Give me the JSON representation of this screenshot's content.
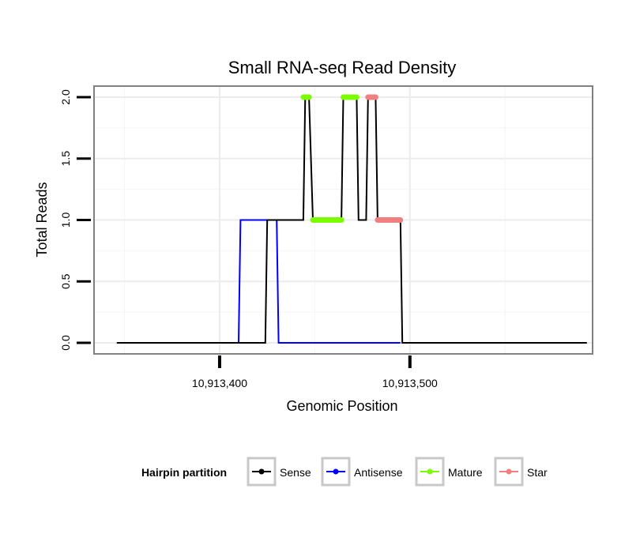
{
  "chart_data": {
    "type": "line",
    "title": "Small RNA-seq Read Density",
    "xlabel": "Genomic Position",
    "ylabel": "Total Reads",
    "xlim": [
      10913334,
      10913596
    ],
    "ylim": [
      -0.09,
      2.09
    ],
    "x_ticks": [
      {
        "value": 10913400,
        "label": "10,913,400"
      },
      {
        "value": 10913500,
        "label": "10,913,500"
      }
    ],
    "y_ticks": [
      {
        "value": 0,
        "label": "0.0"
      },
      {
        "value": 0.5,
        "label": "0.5"
      },
      {
        "value": 1,
        "label": "1.0"
      },
      {
        "value": 1.5,
        "label": "1.5"
      },
      {
        "value": 2,
        "label": "2.0"
      }
    ],
    "grid": true,
    "legend": {
      "title": "Hairpin partition",
      "placement": "bottom",
      "entries": [
        {
          "name": "Sense",
          "color": "#000000"
        },
        {
          "name": "Antisense",
          "color": "#0000ff"
        },
        {
          "name": "Mature",
          "color": "#7cfc00"
        },
        {
          "name": "Star",
          "color": "#f08080"
        }
      ]
    },
    "series": [
      {
        "name": "Sense",
        "color": "#000000",
        "kind": "line",
        "points": [
          [
            10913346,
            0
          ],
          [
            10913424,
            0
          ],
          [
            10913425,
            1
          ],
          [
            10913444,
            1
          ],
          [
            10913445,
            2
          ],
          [
            10913447,
            2
          ],
          [
            10913449,
            1
          ],
          [
            10913464,
            1
          ],
          [
            10913465,
            2
          ],
          [
            10913472,
            2
          ],
          [
            10913473,
            1
          ],
          [
            10913477,
            1
          ],
          [
            10913478,
            2
          ],
          [
            10913482,
            2
          ],
          [
            10913483,
            1
          ],
          [
            10913495,
            1
          ],
          [
            10913496,
            0
          ],
          [
            10913593,
            0
          ]
        ]
      },
      {
        "name": "Antisense",
        "color": "#0000ff",
        "kind": "line",
        "points": [
          [
            10913346,
            0
          ],
          [
            10913410,
            0
          ],
          [
            10913411,
            1
          ],
          [
            10913430,
            1
          ],
          [
            10913431,
            0
          ],
          [
            10913495,
            0
          ]
        ]
      },
      {
        "name": "Mature",
        "color": "#7cfc00",
        "kind": "segments",
        "segments": [
          {
            "x": [
              10913444,
              10913447
            ],
            "y": 2
          },
          {
            "x": [
              10913449,
              10913464
            ],
            "y": 1
          },
          {
            "x": [
              10913465,
              10913472
            ],
            "y": 2
          }
        ]
      },
      {
        "name": "Star",
        "color": "#f08080",
        "kind": "segments",
        "segments": [
          {
            "x": [
              10913478,
              10913482
            ],
            "y": 2
          },
          {
            "x": [
              10913483,
              10913495
            ],
            "y": 1
          }
        ]
      }
    ]
  }
}
